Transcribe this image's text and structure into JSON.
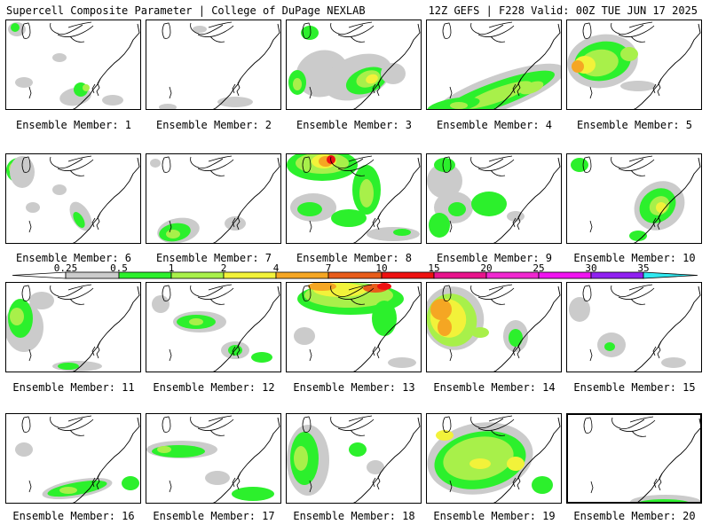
{
  "header": {
    "left": "Supercell Composite Parameter | College of DuPage NEXLAB",
    "right": "12Z GEFS | F228 Valid: 00Z TUE JUN 17 2025"
  },
  "colors": {
    "c025": "#cbcbcb",
    "c05": "#2cf02c",
    "c1": "#a8f04a",
    "c2": "#f2f23a",
    "c4": "#f5a623",
    "c7": "#e85c1a",
    "c10": "#ee1111",
    "c15": "#e8148c",
    "c20": "#f028d0",
    "c25": "#f014f0",
    "c30": "#9020f0",
    "c35": "#b070e8",
    "cmax": "#30e8f0"
  },
  "legend": {
    "labels": [
      "0.25",
      "0.5",
      "1",
      "2",
      "4",
      "7",
      "10",
      "15",
      "20",
      "25",
      "30",
      "35"
    ]
  },
  "members": [
    {
      "label": "Ensemble Member: 1"
    },
    {
      "label": "Ensemble Member: 2"
    },
    {
      "label": "Ensemble Member: 3"
    },
    {
      "label": "Ensemble Member: 4"
    },
    {
      "label": "Ensemble Member: 5"
    },
    {
      "label": "Ensemble Member: 6"
    },
    {
      "label": "Ensemble Member: 7"
    },
    {
      "label": "Ensemble Member: 8"
    },
    {
      "label": "Ensemble Member: 9"
    },
    {
      "label": "Ensemble Member: 10"
    },
    {
      "label": "Ensemble Member: 11"
    },
    {
      "label": "Ensemble Member: 12"
    },
    {
      "label": "Ensemble Member: 13"
    },
    {
      "label": "Ensemble Member: 14"
    },
    {
      "label": "Ensemble Member: 15"
    },
    {
      "label": "Ensemble Member: 16"
    },
    {
      "label": "Ensemble Member: 17"
    },
    {
      "label": "Ensemble Member: 18"
    },
    {
      "label": "Ensemble Member: 19"
    },
    {
      "label": "Ensemble Member: 20",
      "selected": true
    }
  ]
}
